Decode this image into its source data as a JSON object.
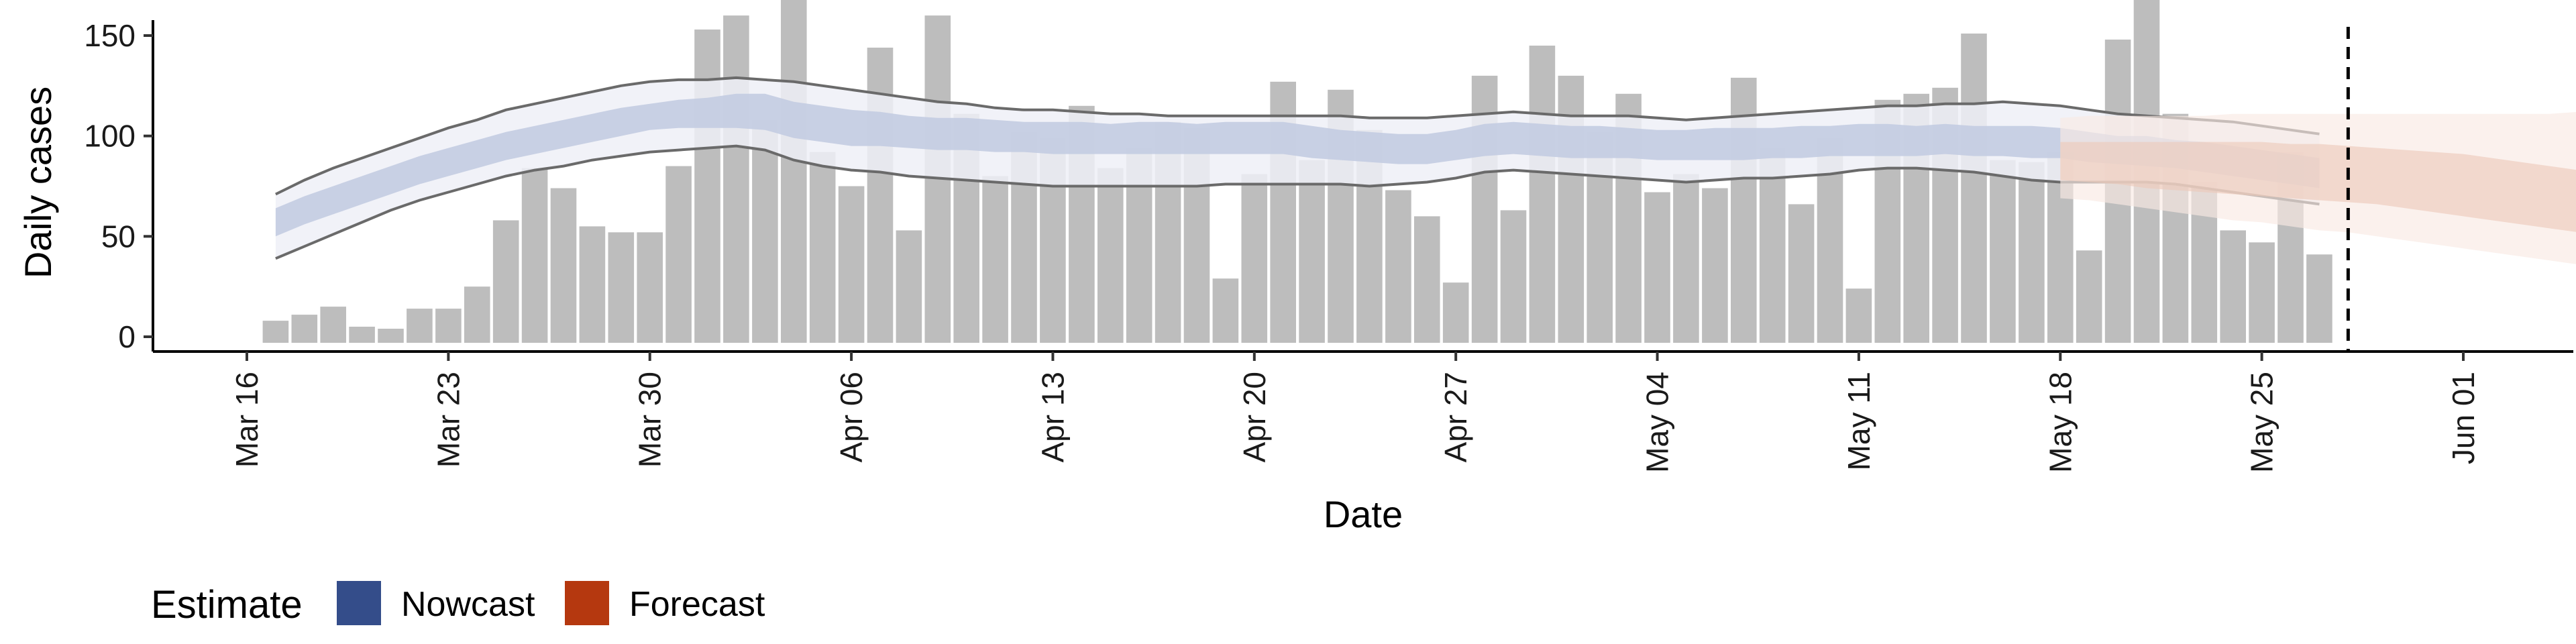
{
  "chart_data": {
    "type": "bar",
    "xlabel": "Date",
    "ylabel": "Daily cases",
    "x_ticks": [
      "Mar 16",
      "Mar 23",
      "Mar 30",
      "Apr 06",
      "Apr 13",
      "Apr 20",
      "Apr 27",
      "May 04",
      "May 11",
      "May 18",
      "May 25",
      "Jun 01"
    ],
    "y_ticks": [
      0,
      50,
      100,
      150
    ],
    "xlim": [
      "2020-03-16",
      "2020-06-01"
    ],
    "ylim": [
      0,
      180
    ],
    "legend": {
      "title": "Estimate",
      "position": "bottom-left",
      "items": [
        {
          "label": "Nowcast",
          "color": "#344d8a"
        },
        {
          "label": "Forecast",
          "color": "#b5380f"
        }
      ]
    },
    "colors": {
      "bars": "#bdbdbd",
      "nowcast_outer": "#eef0f7",
      "nowcast_inner": "#c3cce1",
      "nowcast_lines": "#6a6a6a",
      "forecast_outer": "#f9eae3",
      "forecast_inner": "#ecc8b8",
      "vline": "#000000"
    },
    "vline_date": "2020-05-28",
    "observed": {
      "start_date": "2020-03-17",
      "values": [
        8,
        11,
        15,
        5,
        4,
        14,
        14,
        25,
        58,
        84,
        74,
        55,
        52,
        52,
        85,
        153,
        160,
        108,
        172,
        92,
        75,
        144,
        53,
        160,
        111,
        80,
        102,
        99,
        115,
        84,
        94,
        107,
        104,
        29,
        81,
        127,
        88,
        123,
        103,
        73,
        60,
        27,
        130,
        63,
        145,
        130,
        102,
        121,
        72,
        81,
        74,
        129,
        94,
        66,
        99,
        24,
        118,
        121,
        124,
        151,
        88,
        87,
        92,
        43,
        148,
        169,
        111,
        77,
        53,
        47,
        92,
        41
      ]
    },
    "nowcast": {
      "start_date": "2020-03-17",
      "median": [
        57,
        63,
        68,
        73,
        78,
        83,
        87,
        91,
        95,
        98,
        101,
        104,
        107,
        110,
        111,
        112,
        113,
        112,
        108,
        106,
        104,
        103,
        102,
        101,
        101,
        100,
        99,
        99,
        99,
        98,
        99,
        99,
        98,
        99,
        99,
        99,
        97,
        95,
        94,
        93,
        93,
        95,
        98,
        99,
        98,
        97,
        97,
        96,
        95,
        95,
        96,
        96,
        96,
        97,
        97,
        98,
        98,
        97,
        98,
        97,
        97,
        97,
        96,
        94,
        93,
        93,
        91,
        90,
        88,
        86,
        84,
        82
      ],
      "lower50": [
        50,
        56,
        61,
        66,
        71,
        76,
        80,
        84,
        88,
        91,
        94,
        97,
        100,
        103,
        104,
        104,
        104,
        103,
        99,
        97,
        95,
        95,
        94,
        93,
        93,
        92,
        92,
        91,
        91,
        91,
        91,
        91,
        91,
        91,
        91,
        91,
        89,
        88,
        87,
        86,
        86,
        88,
        90,
        91,
        90,
        89,
        89,
        89,
        88,
        88,
        88,
        88,
        89,
        89,
        90,
        90,
        90,
        90,
        91,
        90,
        90,
        89,
        89,
        87,
        86,
        85,
        84,
        82,
        80,
        78,
        76,
        74
      ],
      "upper50": [
        64,
        70,
        75,
        80,
        85,
        90,
        94,
        98,
        102,
        105,
        108,
        111,
        114,
        116,
        118,
        119,
        121,
        121,
        117,
        115,
        113,
        112,
        110,
        109,
        109,
        108,
        107,
        107,
        107,
        106,
        107,
        107,
        106,
        107,
        107,
        107,
        105,
        103,
        102,
        101,
        101,
        103,
        106,
        107,
        106,
        105,
        105,
        104,
        103,
        103,
        104,
        104,
        104,
        105,
        105,
        106,
        106,
        105,
        106,
        105,
        105,
        105,
        104,
        102,
        100,
        100,
        98,
        97,
        95,
        93,
        91,
        89
      ],
      "lower90": [
        39,
        45,
        51,
        57,
        63,
        68,
        72,
        76,
        80,
        83,
        85,
        88,
        90,
        92,
        93,
        94,
        95,
        93,
        88,
        85,
        83,
        82,
        80,
        79,
        78,
        77,
        76,
        75,
        75,
        75,
        75,
        75,
        75,
        76,
        76,
        76,
        76,
        76,
        75,
        76,
        77,
        79,
        82,
        83,
        82,
        81,
        80,
        79,
        78,
        77,
        78,
        79,
        79,
        80,
        81,
        83,
        84,
        84,
        83,
        82,
        80,
        78,
        77,
        77,
        77,
        77,
        76,
        74,
        72,
        70,
        68,
        66
      ],
      "upper90": [
        71,
        78,
        84,
        89,
        94,
        99,
        104,
        108,
        113,
        116,
        119,
        122,
        125,
        127,
        128,
        128,
        129,
        128,
        127,
        125,
        123,
        121,
        119,
        117,
        116,
        114,
        113,
        113,
        112,
        111,
        111,
        110,
        110,
        110,
        110,
        110,
        110,
        110,
        109,
        109,
        109,
        110,
        111,
        112,
        111,
        110,
        110,
        110,
        109,
        108,
        109,
        110,
        111,
        112,
        113,
        114,
        115,
        115,
        116,
        116,
        117,
        116,
        115,
        113,
        111,
        110,
        109,
        108,
        107,
        105,
        103,
        101
      ]
    },
    "forecast": {
      "start_date": "2020-05-18",
      "median": [
        88,
        88,
        87,
        87,
        87,
        86,
        86,
        86,
        85,
        84,
        83,
        82,
        81,
        79,
        77,
        75,
        73,
        72,
        70,
        68,
        66,
        65,
        64
      ],
      "lower50": [
        78,
        77,
        76,
        74,
        73,
        72,
        71,
        70,
        69,
        68,
        67,
        66,
        64,
        62,
        60,
        58,
        56,
        54,
        52,
        50,
        48,
        47,
        46
      ],
      "upper50": [
        97,
        97,
        97,
        97,
        97,
        97,
        97,
        97,
        96,
        96,
        95,
        94,
        93,
        92,
        91,
        89,
        87,
        85,
        83,
        81,
        80,
        79,
        79
      ],
      "lower90": [
        69,
        68,
        66,
        64,
        62,
        60,
        58,
        57,
        55,
        53,
        52,
        50,
        48,
        46,
        44,
        42,
        40,
        38,
        36,
        35,
        34,
        32,
        31
      ],
      "upper90": [
        109,
        110,
        110,
        110,
        110,
        110,
        111,
        111,
        111,
        111,
        111,
        111,
        111,
        111,
        111,
        111,
        111,
        111,
        112,
        113,
        114,
        115,
        116
      ]
    }
  }
}
